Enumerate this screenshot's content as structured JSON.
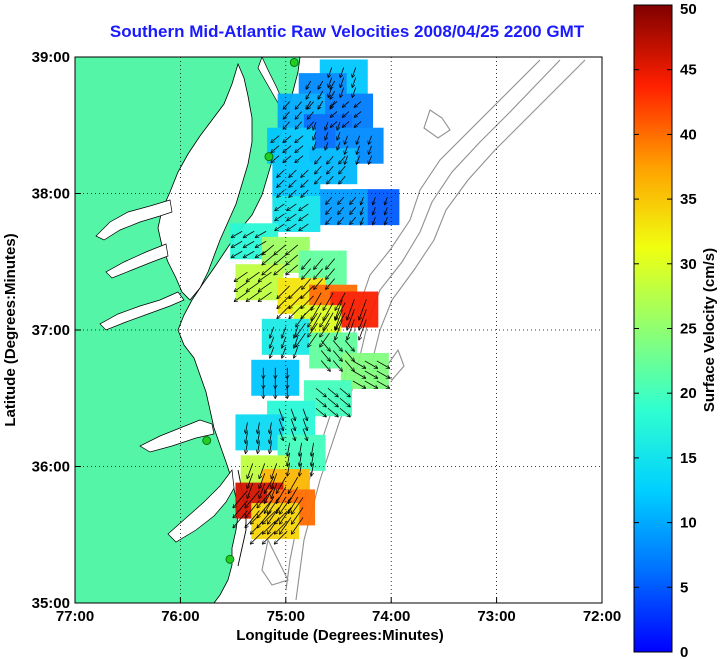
{
  "title": "Southern Mid-Atlantic Raw Velocities 2008/04/25 2200 GMT",
  "map": {
    "x_label": "Longitude (Degrees:Minutes)",
    "y_label": "Latitude (Degrees:Minutes)",
    "lon_range": [
      -77,
      -72
    ],
    "lat_range": [
      35,
      39
    ],
    "x_ticks": [
      {
        "value": -77,
        "label": "77:00"
      },
      {
        "value": -76,
        "label": "76:00"
      },
      {
        "value": -75,
        "label": "75:00"
      },
      {
        "value": -74,
        "label": "74:00"
      },
      {
        "value": -73,
        "label": "73:00"
      },
      {
        "value": -72,
        "label": "72:00"
      }
    ],
    "y_ticks": [
      {
        "value": 39,
        "label": "39:00"
      },
      {
        "value": 38,
        "label": "38:00"
      },
      {
        "value": 37,
        "label": "37:00"
      },
      {
        "value": 36,
        "label": "36:00"
      },
      {
        "value": 35,
        "label": "35:00"
      }
    ],
    "grid": "dotted",
    "land_color": "#55f5a8",
    "coastline_color": "#000000",
    "bathymetry_color": "#909090",
    "station_color": "#22cc22",
    "stations": [
      {
        "lon": -74.92,
        "lat": 38.96
      },
      {
        "lon": -75.16,
        "lat": 38.27
      },
      {
        "lon": -75.75,
        "lat": 36.19
      },
      {
        "lon": -75.53,
        "lat": 35.32
      }
    ]
  },
  "colorbar": {
    "label": "Surface Velocity (cm/s)",
    "min": 0,
    "max": 50,
    "ticks": [
      {
        "value": 0,
        "label": "0"
      },
      {
        "value": 5,
        "label": "5"
      },
      {
        "value": 10,
        "label": "10"
      },
      {
        "value": 15,
        "label": "15"
      },
      {
        "value": 20,
        "label": "20"
      },
      {
        "value": 25,
        "label": "25"
      },
      {
        "value": 30,
        "label": "30"
      },
      {
        "value": 35,
        "label": "35"
      },
      {
        "value": 40,
        "label": "40"
      },
      {
        "value": 45,
        "label": "45"
      },
      {
        "value": 50,
        "label": "50"
      }
    ]
  },
  "velocity_field": [
    {
      "lon": -74.45,
      "lat": 38.85,
      "speed": 12,
      "dir": 200
    },
    {
      "lon": -74.65,
      "lat": 38.75,
      "speed": 8,
      "dir": 210
    },
    {
      "lon": -74.85,
      "lat": 38.6,
      "speed": 10,
      "dir": 220
    },
    {
      "lon": -74.4,
      "lat": 38.6,
      "speed": 7,
      "dir": 230
    },
    {
      "lon": -74.6,
      "lat": 38.45,
      "speed": 6,
      "dir": 200
    },
    {
      "lon": -74.95,
      "lat": 38.35,
      "speed": 12,
      "dir": 230
    },
    {
      "lon": -74.3,
      "lat": 38.35,
      "speed": 8,
      "dir": 200
    },
    {
      "lon": -74.55,
      "lat": 38.2,
      "speed": 11,
      "dir": 220
    },
    {
      "lon": -74.9,
      "lat": 38.1,
      "speed": 12,
      "dir": 225
    },
    {
      "lon": -74.15,
      "lat": 37.9,
      "speed": 5,
      "dir": 200
    },
    {
      "lon": -74.45,
      "lat": 37.9,
      "speed": 9,
      "dir": 220
    },
    {
      "lon": -74.9,
      "lat": 37.85,
      "speed": 15,
      "dir": 235
    },
    {
      "lon": -75.3,
      "lat": 37.65,
      "speed": 18,
      "dir": 240
    },
    {
      "lon": -75.0,
      "lat": 37.55,
      "speed": 26,
      "dir": 230
    },
    {
      "lon": -74.65,
      "lat": 37.45,
      "speed": 22,
      "dir": 220
    },
    {
      "lon": -75.25,
      "lat": 37.35,
      "speed": 28,
      "dir": 235
    },
    {
      "lon": -74.85,
      "lat": 37.25,
      "speed": 33,
      "dir": 225
    },
    {
      "lon": -74.55,
      "lat": 37.2,
      "speed": 40,
      "dir": 210
    },
    {
      "lon": -74.35,
      "lat": 37.15,
      "speed": 44,
      "dir": 200
    },
    {
      "lon": -74.7,
      "lat": 37.05,
      "speed": 30,
      "dir": 215
    },
    {
      "lon": -75.0,
      "lat": 36.95,
      "speed": 16,
      "dir": 200
    },
    {
      "lon": -74.55,
      "lat": 36.85,
      "speed": 22,
      "dir": 140
    },
    {
      "lon": -74.25,
      "lat": 36.7,
      "speed": 24,
      "dir": 120
    },
    {
      "lon": -75.1,
      "lat": 36.65,
      "speed": 12,
      "dir": 180
    },
    {
      "lon": -74.6,
      "lat": 36.5,
      "speed": 20,
      "dir": 130
    },
    {
      "lon": -74.95,
      "lat": 36.35,
      "speed": 18,
      "dir": 160
    },
    {
      "lon": -75.25,
      "lat": 36.25,
      "speed": 14,
      "dir": 190
    },
    {
      "lon": -74.85,
      "lat": 36.1,
      "speed": 20,
      "dir": 190
    },
    {
      "lon": -75.2,
      "lat": 35.95,
      "speed": 28,
      "dir": 200
    },
    {
      "lon": -75.0,
      "lat": 35.85,
      "speed": 36,
      "dir": 210
    },
    {
      "lon": -75.25,
      "lat": 35.75,
      "speed": 46,
      "dir": 220
    },
    {
      "lon": -74.95,
      "lat": 35.7,
      "speed": 40,
      "dir": 215
    },
    {
      "lon": -75.1,
      "lat": 35.6,
      "speed": 34,
      "dir": 225
    }
  ]
}
